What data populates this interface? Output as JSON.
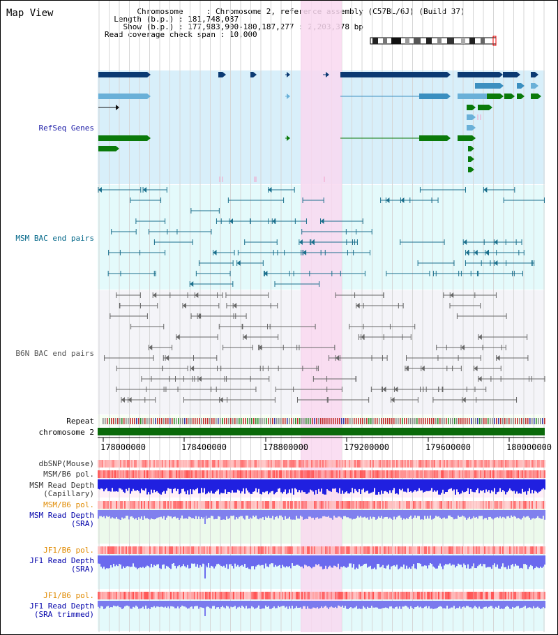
{
  "title": "Map View",
  "info": {
    "chromosome_label": "Chromosome",
    "chromosome_value": "Chromosome 2, reference assembly (C57BL/6J) (Build 37)",
    "length_label": "Length (b.p.)",
    "length_value": "181,748,087",
    "show_label": "Show (b.p.)",
    "show_value": "177,983,900-180,187,277 : 2,203,378 bp",
    "coverage_label": "Read coverage check span",
    "coverage_value": "10,000"
  },
  "tracks": {
    "refseq": "RefSeq Genes",
    "msm_bac": "MSM BAC end pairs",
    "b6n_bac": "B6N BAC end pairs",
    "repeat": "Repeat",
    "chromosome": "chromosome 2",
    "dbsnp": "dbSNP(Mouse)",
    "msm_b6_pol": "MSM/B6 pol.",
    "msm_depth_cap_1": "MSM Read Depth",
    "msm_depth_cap_2": "(Capillary)",
    "msm_b6_pol2": "MSM/B6 pol.",
    "msm_depth_sra_1": "MSM Read Depth",
    "msm_depth_sra_2": "(SRA)",
    "jf1_b6_pol": "JF1/B6 pol.",
    "jf1_depth_sra_1": "JF1 Read Depth",
    "jf1_depth_sra_2": "(SRA)",
    "jf1_b6_pol2": "JF1/B6 pol.",
    "jf1_depth_trim_1": "JF1 Read Depth",
    "jf1_depth_trim_2": "(SRA trimmed)"
  },
  "axis_ticks": [
    "178000000",
    "178400000",
    "178800000",
    "179200000",
    "179600000",
    "180000000"
  ],
  "colors": {
    "refseq_label": "#1a1aa6",
    "msm_label": "#006688",
    "b6n_label": "#555555",
    "orange_label": "#e08a00",
    "blue_label": "#0000aa",
    "highlight": "#f9d8f0"
  }
}
